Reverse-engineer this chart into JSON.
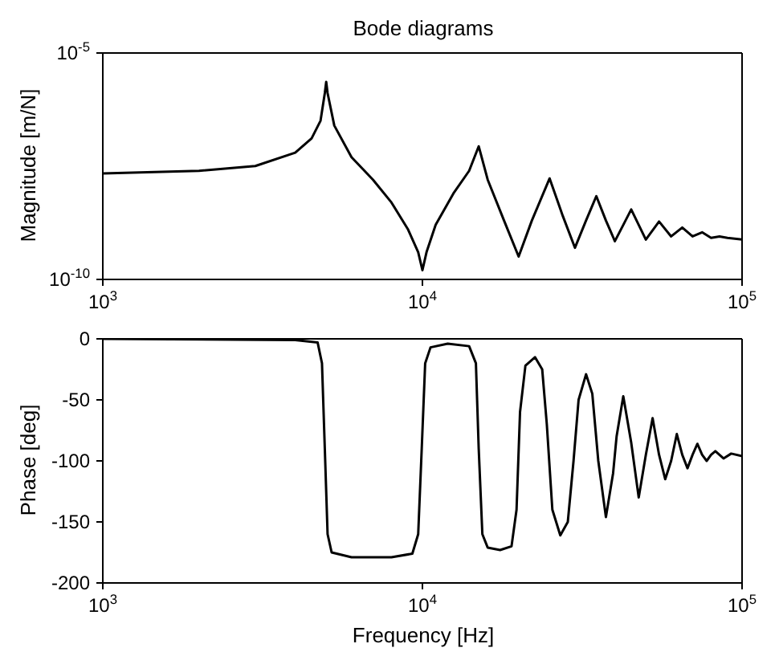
{
  "chart_data": [
    {
      "type": "line",
      "title": "Bode diagrams",
      "ylabel": "Magnitude [m/N]",
      "log": "xy",
      "xlim": [
        1000,
        100000
      ],
      "xticks": [
        {
          "value": 1000,
          "label": "10$^{3}$"
        },
        {
          "value": 10000,
          "label": "10$^{4}$"
        },
        {
          "value": 100000,
          "label": "10$^{5}$"
        }
      ],
      "ylim": [
        1e-10,
        1e-05
      ],
      "yticks": [
        {
          "value": 1e-10,
          "label": "10$^{-10}$"
        },
        {
          "value": 1e-05,
          "label": "10$^{-5}$"
        }
      ],
      "series": [
        {
          "color": "#000000",
          "x": [
            1000,
            2000,
            3000,
            4000,
            4500,
            4800,
            4950,
            5000,
            5050,
            5300,
            6000,
            7000,
            8000,
            9000,
            9700,
            10000,
            10300,
            11000,
            12500,
            14000,
            15000,
            16000,
            18000,
            20000,
            22000,
            25000,
            27500,
            30000,
            32500,
            35000,
            37500,
            40000,
            42500,
            45000,
            47500,
            50000,
            55000,
            60000,
            65000,
            70000,
            75000,
            80000,
            85000,
            90000,
            100000
          ],
          "values": [
            2.2e-08,
            2.5e-08,
            3.2e-08,
            6.3e-08,
            1.3e-07,
            3.2e-07,
            1.3e-06,
            2.3e-06,
            1.3e-06,
            2.5e-07,
            5e-08,
            1.6e-08,
            5e-09,
            1.3e-09,
            4e-10,
            1.6e-10,
            4e-10,
            1.6e-09,
            7.9e-09,
            2.5e-08,
            8.7e-08,
            1.6e-08,
            2e-09,
            3.2e-10,
            2e-09,
            1.7e-08,
            2.5e-09,
            5e-10,
            2e-09,
            6.9e-09,
            2e-09,
            7e-10,
            1.6e-09,
            3.5e-09,
            1.6e-09,
            7.6e-10,
            1.9e-09,
            8.9e-10,
            1.4e-09,
            8.9e-10,
            1.1e-09,
            8.3e-10,
            8.9e-10,
            8.3e-10,
            7.6e-10
          ]
        }
      ]
    },
    {
      "type": "line",
      "xlabel": "Frequency [Hz]",
      "ylabel": "Phase [deg]",
      "log": "x",
      "xlim": [
        1000,
        100000
      ],
      "xticks": [
        {
          "value": 1000,
          "label": "10$^{3}$"
        },
        {
          "value": 10000,
          "label": "10$^{4}$"
        },
        {
          "value": 100000,
          "label": "10$^{5}$"
        }
      ],
      "ylim": [
        -200,
        0
      ],
      "yticks": [
        -200,
        -150,
        -100,
        -50,
        0
      ],
      "series": [
        {
          "color": "#000000",
          "x": [
            1000,
            4000,
            4700,
            4850,
            4950,
            5050,
            5200,
            6000,
            8000,
            9300,
            9700,
            9950,
            10200,
            10600,
            12000,
            14000,
            14700,
            15000,
            15400,
            16000,
            17500,
            19000,
            19700,
            20200,
            21000,
            22500,
            23700,
            24500,
            25500,
            27000,
            28500,
            29700,
            30800,
            32500,
            34000,
            35500,
            37500,
            39500,
            40500,
            42500,
            45000,
            47500,
            50000,
            52500,
            55000,
            57500,
            60000,
            62500,
            65000,
            67500,
            70000,
            72500,
            75000,
            77500,
            80000,
            82500,
            87500,
            92500,
            100000
          ],
          "values": [
            0,
            -1,
            -3,
            -20,
            -90,
            -160,
            -175,
            -179,
            -179,
            -176,
            -160,
            -90,
            -20,
            -7,
            -4,
            -6,
            -20,
            -90,
            -160,
            -171,
            -173,
            -170,
            -140,
            -60,
            -22,
            -15,
            -25,
            -70,
            -140,
            -161,
            -150,
            -100,
            -50,
            -29,
            -45,
            -100,
            -146,
            -110,
            -80,
            -47,
            -85,
            -130,
            -95,
            -65,
            -95,
            -115,
            -100,
            -78,
            -95,
            -106,
            -95,
            -86,
            -95,
            -100,
            -95,
            -92,
            -98,
            -94,
            -96
          ]
        }
      ]
    }
  ]
}
